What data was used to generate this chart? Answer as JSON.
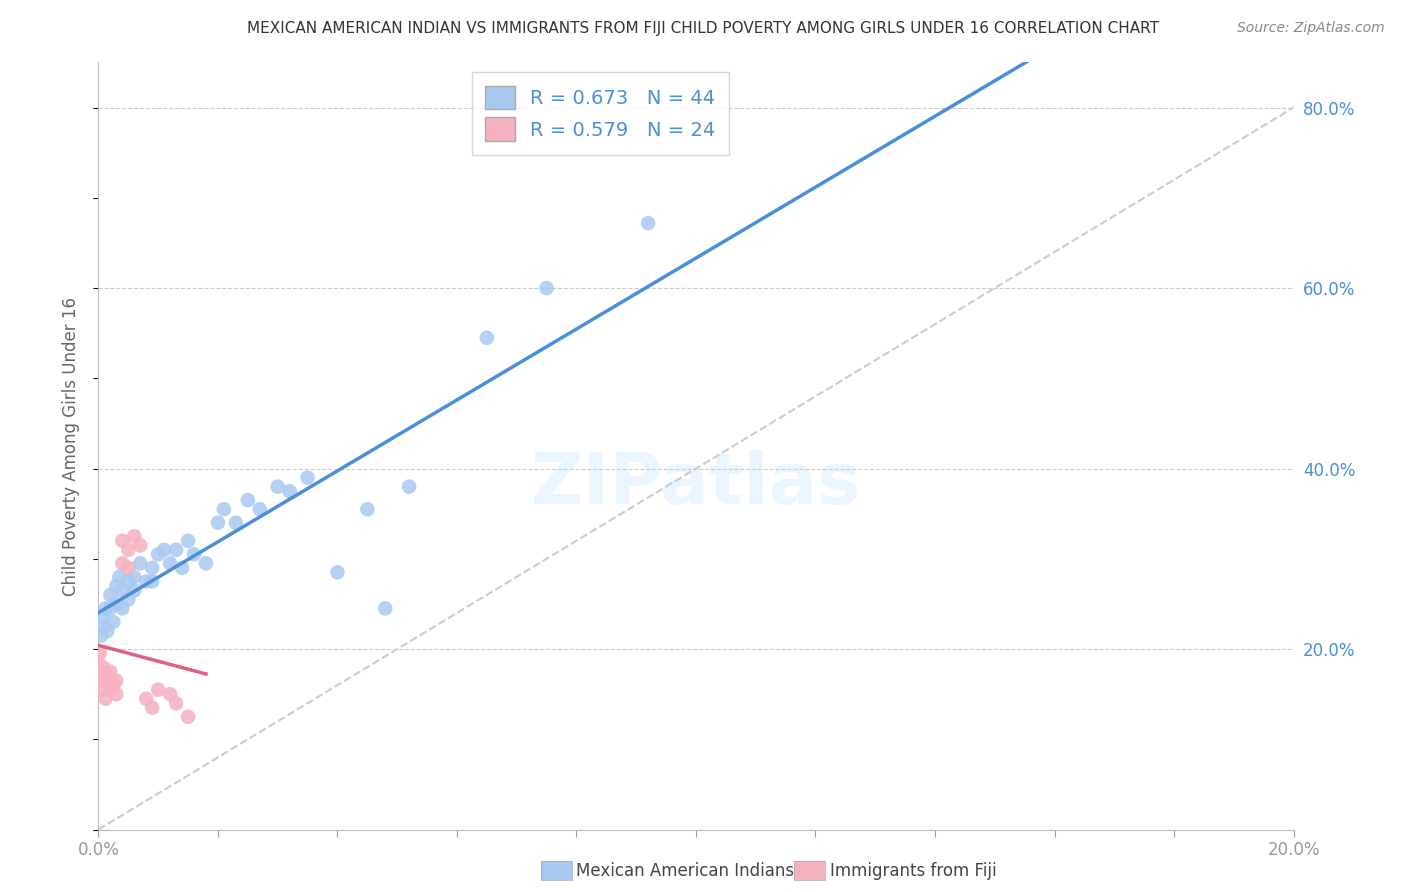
{
  "title": "MEXICAN AMERICAN INDIAN VS IMMIGRANTS FROM FIJI CHILD POVERTY AMONG GIRLS UNDER 16 CORRELATION CHART",
  "source": "Source: ZipAtlas.com",
  "ylabel": "Child Poverty Among Girls Under 16",
  "xlim": [
    0.0,
    0.2
  ],
  "ylim": [
    0.0,
    0.85
  ],
  "ytick_vals": [
    0.2,
    0.4,
    0.6,
    0.8
  ],
  "xtick_labels_show": [
    "0.0%",
    "20.0%"
  ],
  "group1_label": "Mexican American Indians",
  "group1_R": "0.673",
  "group1_N": "44",
  "group1_color": "#a8c8f0",
  "group1_line_color": "#4a90d9",
  "group2_label": "Immigrants from Fiji",
  "group2_R": "0.579",
  "group2_N": "24",
  "group2_color": "#f5b0c0",
  "group2_line_color": "#e06080",
  "diagonal_color": "#cccccc",
  "watermark": "ZIPatlas",
  "group1_x": [
    0.0005,
    0.0008,
    0.001,
    0.0012,
    0.0015,
    0.002,
    0.002,
    0.0025,
    0.003,
    0.003,
    0.0035,
    0.004,
    0.004,
    0.005,
    0.005,
    0.006,
    0.006,
    0.007,
    0.008,
    0.009,
    0.009,
    0.01,
    0.011,
    0.012,
    0.013,
    0.014,
    0.015,
    0.016,
    0.018,
    0.02,
    0.021,
    0.023,
    0.025,
    0.027,
    0.03,
    0.032,
    0.035,
    0.04,
    0.045,
    0.048,
    0.052,
    0.065,
    0.075,
    0.092
  ],
  "group1_y": [
    0.215,
    0.235,
    0.225,
    0.245,
    0.22,
    0.26,
    0.245,
    0.23,
    0.27,
    0.25,
    0.28,
    0.265,
    0.245,
    0.275,
    0.255,
    0.28,
    0.265,
    0.295,
    0.275,
    0.29,
    0.275,
    0.305,
    0.31,
    0.295,
    0.31,
    0.29,
    0.32,
    0.305,
    0.295,
    0.34,
    0.355,
    0.34,
    0.365,
    0.355,
    0.38,
    0.375,
    0.39,
    0.285,
    0.355,
    0.245,
    0.38,
    0.545,
    0.6,
    0.672
  ],
  "group2_x": [
    0.0002,
    0.0004,
    0.0006,
    0.0008,
    0.001,
    0.0012,
    0.0015,
    0.002,
    0.002,
    0.0025,
    0.003,
    0.003,
    0.004,
    0.004,
    0.005,
    0.005,
    0.006,
    0.007,
    0.008,
    0.009,
    0.01,
    0.012,
    0.013,
    0.015
  ],
  "group2_y": [
    0.195,
    0.175,
    0.155,
    0.18,
    0.165,
    0.145,
    0.17,
    0.155,
    0.175,
    0.16,
    0.15,
    0.165,
    0.295,
    0.32,
    0.31,
    0.29,
    0.325,
    0.315,
    0.145,
    0.135,
    0.155,
    0.15,
    0.14,
    0.125
  ]
}
